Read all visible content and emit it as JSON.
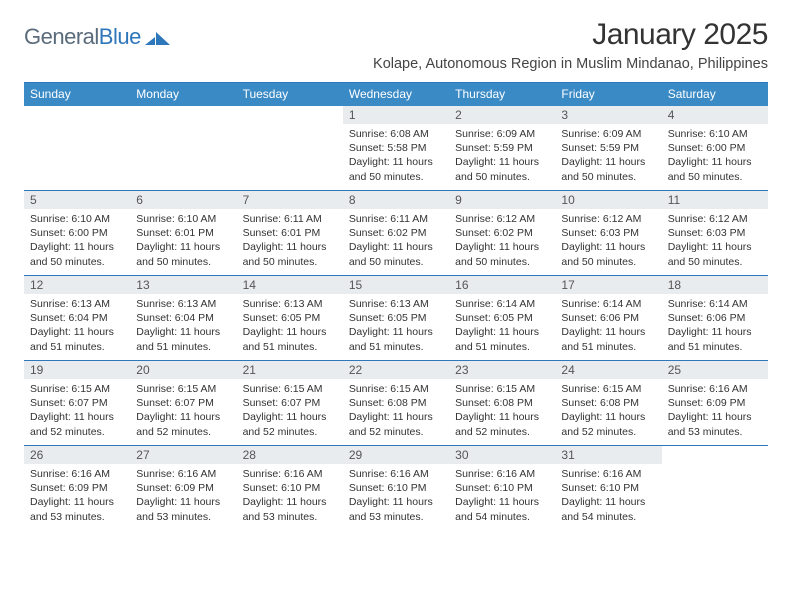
{
  "brand": {
    "part1": "General",
    "part2": "Blue"
  },
  "title": "January 2025",
  "subtitle": "Kolape, Autonomous Region in Muslim Mindanao, Philippines",
  "colors": {
    "accent": "#2f77bb",
    "header_bg": "#3a8ac6",
    "daynum_bg": "#e9ecef",
    "text": "#333333",
    "logo_gray": "#5a6b7b"
  },
  "day_headers": [
    "Sunday",
    "Monday",
    "Tuesday",
    "Wednesday",
    "Thursday",
    "Friday",
    "Saturday"
  ],
  "weeks": [
    [
      {
        "n": "",
        "empty": true
      },
      {
        "n": "",
        "empty": true
      },
      {
        "n": "",
        "empty": true
      },
      {
        "n": "1",
        "sunrise": "Sunrise: 6:08 AM",
        "sunset": "Sunset: 5:58 PM",
        "daylight": "Daylight: 11 hours and 50 minutes."
      },
      {
        "n": "2",
        "sunrise": "Sunrise: 6:09 AM",
        "sunset": "Sunset: 5:59 PM",
        "daylight": "Daylight: 11 hours and 50 minutes."
      },
      {
        "n": "3",
        "sunrise": "Sunrise: 6:09 AM",
        "sunset": "Sunset: 5:59 PM",
        "daylight": "Daylight: 11 hours and 50 minutes."
      },
      {
        "n": "4",
        "sunrise": "Sunrise: 6:10 AM",
        "sunset": "Sunset: 6:00 PM",
        "daylight": "Daylight: 11 hours and 50 minutes."
      }
    ],
    [
      {
        "n": "5",
        "sunrise": "Sunrise: 6:10 AM",
        "sunset": "Sunset: 6:00 PM",
        "daylight": "Daylight: 11 hours and 50 minutes."
      },
      {
        "n": "6",
        "sunrise": "Sunrise: 6:10 AM",
        "sunset": "Sunset: 6:01 PM",
        "daylight": "Daylight: 11 hours and 50 minutes."
      },
      {
        "n": "7",
        "sunrise": "Sunrise: 6:11 AM",
        "sunset": "Sunset: 6:01 PM",
        "daylight": "Daylight: 11 hours and 50 minutes."
      },
      {
        "n": "8",
        "sunrise": "Sunrise: 6:11 AM",
        "sunset": "Sunset: 6:02 PM",
        "daylight": "Daylight: 11 hours and 50 minutes."
      },
      {
        "n": "9",
        "sunrise": "Sunrise: 6:12 AM",
        "sunset": "Sunset: 6:02 PM",
        "daylight": "Daylight: 11 hours and 50 minutes."
      },
      {
        "n": "10",
        "sunrise": "Sunrise: 6:12 AM",
        "sunset": "Sunset: 6:03 PM",
        "daylight": "Daylight: 11 hours and 50 minutes."
      },
      {
        "n": "11",
        "sunrise": "Sunrise: 6:12 AM",
        "sunset": "Sunset: 6:03 PM",
        "daylight": "Daylight: 11 hours and 50 minutes."
      }
    ],
    [
      {
        "n": "12",
        "sunrise": "Sunrise: 6:13 AM",
        "sunset": "Sunset: 6:04 PM",
        "daylight": "Daylight: 11 hours and 51 minutes."
      },
      {
        "n": "13",
        "sunrise": "Sunrise: 6:13 AM",
        "sunset": "Sunset: 6:04 PM",
        "daylight": "Daylight: 11 hours and 51 minutes."
      },
      {
        "n": "14",
        "sunrise": "Sunrise: 6:13 AM",
        "sunset": "Sunset: 6:05 PM",
        "daylight": "Daylight: 11 hours and 51 minutes."
      },
      {
        "n": "15",
        "sunrise": "Sunrise: 6:13 AM",
        "sunset": "Sunset: 6:05 PM",
        "daylight": "Daylight: 11 hours and 51 minutes."
      },
      {
        "n": "16",
        "sunrise": "Sunrise: 6:14 AM",
        "sunset": "Sunset: 6:05 PM",
        "daylight": "Daylight: 11 hours and 51 minutes."
      },
      {
        "n": "17",
        "sunrise": "Sunrise: 6:14 AM",
        "sunset": "Sunset: 6:06 PM",
        "daylight": "Daylight: 11 hours and 51 minutes."
      },
      {
        "n": "18",
        "sunrise": "Sunrise: 6:14 AM",
        "sunset": "Sunset: 6:06 PM",
        "daylight": "Daylight: 11 hours and 51 minutes."
      }
    ],
    [
      {
        "n": "19",
        "sunrise": "Sunrise: 6:15 AM",
        "sunset": "Sunset: 6:07 PM",
        "daylight": "Daylight: 11 hours and 52 minutes."
      },
      {
        "n": "20",
        "sunrise": "Sunrise: 6:15 AM",
        "sunset": "Sunset: 6:07 PM",
        "daylight": "Daylight: 11 hours and 52 minutes."
      },
      {
        "n": "21",
        "sunrise": "Sunrise: 6:15 AM",
        "sunset": "Sunset: 6:07 PM",
        "daylight": "Daylight: 11 hours and 52 minutes."
      },
      {
        "n": "22",
        "sunrise": "Sunrise: 6:15 AM",
        "sunset": "Sunset: 6:08 PM",
        "daylight": "Daylight: 11 hours and 52 minutes."
      },
      {
        "n": "23",
        "sunrise": "Sunrise: 6:15 AM",
        "sunset": "Sunset: 6:08 PM",
        "daylight": "Daylight: 11 hours and 52 minutes."
      },
      {
        "n": "24",
        "sunrise": "Sunrise: 6:15 AM",
        "sunset": "Sunset: 6:08 PM",
        "daylight": "Daylight: 11 hours and 52 minutes."
      },
      {
        "n": "25",
        "sunrise": "Sunrise: 6:16 AM",
        "sunset": "Sunset: 6:09 PM",
        "daylight": "Daylight: 11 hours and 53 minutes."
      }
    ],
    [
      {
        "n": "26",
        "sunrise": "Sunrise: 6:16 AM",
        "sunset": "Sunset: 6:09 PM",
        "daylight": "Daylight: 11 hours and 53 minutes."
      },
      {
        "n": "27",
        "sunrise": "Sunrise: 6:16 AM",
        "sunset": "Sunset: 6:09 PM",
        "daylight": "Daylight: 11 hours and 53 minutes."
      },
      {
        "n": "28",
        "sunrise": "Sunrise: 6:16 AM",
        "sunset": "Sunset: 6:10 PM",
        "daylight": "Daylight: 11 hours and 53 minutes."
      },
      {
        "n": "29",
        "sunrise": "Sunrise: 6:16 AM",
        "sunset": "Sunset: 6:10 PM",
        "daylight": "Daylight: 11 hours and 53 minutes."
      },
      {
        "n": "30",
        "sunrise": "Sunrise: 6:16 AM",
        "sunset": "Sunset: 6:10 PM",
        "daylight": "Daylight: 11 hours and 54 minutes."
      },
      {
        "n": "31",
        "sunrise": "Sunrise: 6:16 AM",
        "sunset": "Sunset: 6:10 PM",
        "daylight": "Daylight: 11 hours and 54 minutes."
      },
      {
        "n": "",
        "empty": true
      }
    ]
  ]
}
